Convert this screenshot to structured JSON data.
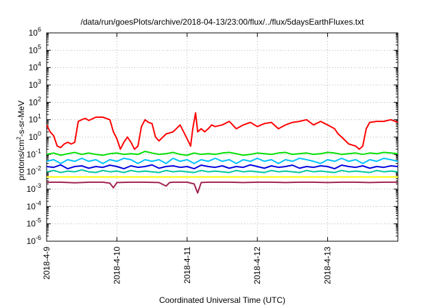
{
  "chart_data": {
    "type": "line",
    "title": "/data/run/goesPlots/archive/2018-04-13/23:00/flux/../flux/5daysEarthFluxes.txt",
    "xlabel": "Coordinated Universal Time (UTC)",
    "ylabel": {
      "base": "protons/cm",
      "sup": "2",
      "rest": "-s-sr-MeV"
    },
    "yscale": "log",
    "ylim": [
      1e-06,
      1000000.0
    ],
    "xlim": [
      0,
      5
    ],
    "grid": true,
    "legend": "none",
    "x_ticks": [
      {
        "value": 0,
        "label": "2018-4-9"
      },
      {
        "value": 1,
        "label": "2018-4-10"
      },
      {
        "value": 2,
        "label": "2018-4-11"
      },
      {
        "value": 3,
        "label": "2018-4-12"
      },
      {
        "value": 4,
        "label": "2018-4-13"
      }
    ],
    "y_ticks": [
      {
        "exp": 6,
        "label": "6"
      },
      {
        "exp": 5,
        "label": "5"
      },
      {
        "exp": 4,
        "label": "4"
      },
      {
        "exp": 3,
        "label": "3"
      },
      {
        "exp": 2,
        "label": "2"
      },
      {
        "exp": 1,
        "label": "1"
      },
      {
        "exp": 0,
        "label": "0"
      },
      {
        "exp": -1,
        "label": "-1"
      },
      {
        "exp": -2,
        "label": "-2"
      },
      {
        "exp": -3,
        "label": "-3"
      },
      {
        "exp": -4,
        "label": "-4"
      },
      {
        "exp": -5,
        "label": "-5"
      },
      {
        "exp": -6,
        "label": "-6"
      }
    ],
    "y_tick_base": "10",
    "series": [
      {
        "color": "#ff0000",
        "x": [
          0,
          0.05,
          0.1,
          0.15,
          0.2,
          0.25,
          0.3,
          0.35,
          0.4,
          0.45,
          0.5,
          0.55,
          0.6,
          0.7,
          0.8,
          0.9,
          0.95,
          1.0,
          1.05,
          1.1,
          1.15,
          1.2,
          1.25,
          1.3,
          1.35,
          1.4,
          1.45,
          1.5,
          1.55,
          1.6,
          1.7,
          1.8,
          1.9,
          1.95,
          2.0,
          2.05,
          2.08,
          2.12,
          2.15,
          2.2,
          2.25,
          2.3,
          2.35,
          2.4,
          2.5,
          2.6,
          2.7,
          2.8,
          2.9,
          3.0,
          3.1,
          3.2,
          3.3,
          3.4,
          3.5,
          3.6,
          3.7,
          3.8,
          3.9,
          4.0,
          4.1,
          4.15,
          4.2,
          4.3,
          4.4,
          4.45,
          4.5,
          4.55,
          4.6,
          4.7,
          4.8,
          4.9,
          5.0
        ],
        "y": [
          5,
          2,
          1.2,
          0.3,
          0.25,
          0.4,
          0.5,
          0.4,
          0.5,
          8,
          10,
          12,
          9,
          14,
          14,
          10,
          2,
          0.8,
          0.2,
          0.5,
          1,
          0.5,
          0.2,
          0.3,
          4,
          10,
          7,
          6,
          1,
          0.6,
          1.5,
          2,
          5,
          2,
          0.8,
          0.3,
          3,
          25,
          2,
          3,
          2,
          3,
          5,
          4,
          5,
          8,
          3,
          5,
          7,
          4,
          6,
          7,
          3,
          5,
          7,
          8,
          10,
          5,
          8,
          5,
          3,
          1.5,
          1,
          0.4,
          0.3,
          0.2,
          0.3,
          3,
          7,
          8,
          8,
          10,
          7
        ]
      },
      {
        "color": "#00e000",
        "x": [
          0,
          0.1,
          0.2,
          0.3,
          0.4,
          0.5,
          0.6,
          0.7,
          0.8,
          0.9,
          1.0,
          1.1,
          1.2,
          1.3,
          1.4,
          1.5,
          1.6,
          1.7,
          1.8,
          1.9,
          2.0,
          2.1,
          2.2,
          2.3,
          2.4,
          2.5,
          2.6,
          2.7,
          2.8,
          2.9,
          3.0,
          3.1,
          3.2,
          3.3,
          3.4,
          3.5,
          3.6,
          3.7,
          3.8,
          3.9,
          4.0,
          4.1,
          4.2,
          4.3,
          4.4,
          4.5,
          4.6,
          4.7,
          4.8,
          4.9,
          5.0
        ],
        "y": [
          0.1,
          0.12,
          0.09,
          0.11,
          0.13,
          0.1,
          0.12,
          0.1,
          0.09,
          0.11,
          0.12,
          0.1,
          0.11,
          0.1,
          0.15,
          0.12,
          0.1,
          0.11,
          0.13,
          0.1,
          0.09,
          0.12,
          0.1,
          0.11,
          0.1,
          0.12,
          0.13,
          0.11,
          0.09,
          0.1,
          0.12,
          0.11,
          0.1,
          0.12,
          0.13,
          0.1,
          0.11,
          0.12,
          0.1,
          0.11,
          0.13,
          0.12,
          0.1,
          0.11,
          0.12,
          0.1,
          0.12,
          0.11,
          0.13,
          0.12,
          0.11
        ]
      },
      {
        "color": "#00c0ff",
        "x": [
          0,
          0.1,
          0.2,
          0.3,
          0.4,
          0.5,
          0.6,
          0.7,
          0.8,
          0.9,
          1.0,
          1.1,
          1.2,
          1.3,
          1.4,
          1.5,
          1.6,
          1.7,
          1.8,
          1.9,
          2.0,
          2.1,
          2.2,
          2.3,
          2.4,
          2.5,
          2.6,
          2.7,
          2.8,
          2.9,
          3.0,
          3.1,
          3.2,
          3.3,
          3.4,
          3.5,
          3.6,
          3.7,
          3.8,
          3.9,
          4.0,
          4.1,
          4.2,
          4.3,
          4.4,
          4.5,
          4.6,
          4.7,
          4.8,
          4.9,
          5.0
        ],
        "y": [
          0.04,
          0.05,
          0.03,
          0.05,
          0.04,
          0.06,
          0.04,
          0.05,
          0.03,
          0.05,
          0.04,
          0.06,
          0.05,
          0.03,
          0.05,
          0.04,
          0.05,
          0.03,
          0.06,
          0.04,
          0.05,
          0.03,
          0.05,
          0.04,
          0.06,
          0.04,
          0.05,
          0.03,
          0.05,
          0.04,
          0.06,
          0.04,
          0.05,
          0.03,
          0.05,
          0.04,
          0.06,
          0.05,
          0.04,
          0.03,
          0.05,
          0.04,
          0.06,
          0.04,
          0.05,
          0.03,
          0.05,
          0.04,
          0.06,
          0.05,
          0.04
        ]
      },
      {
        "color": "#0000e0",
        "x": [
          0,
          0.1,
          0.2,
          0.3,
          0.4,
          0.5,
          0.6,
          0.7,
          0.8,
          0.9,
          1.0,
          1.1,
          1.2,
          1.3,
          1.4,
          1.5,
          1.6,
          1.7,
          1.8,
          1.9,
          2.0,
          2.1,
          2.2,
          2.3,
          2.4,
          2.5,
          2.6,
          2.7,
          2.8,
          2.9,
          3.0,
          3.1,
          3.2,
          3.3,
          3.4,
          3.5,
          3.6,
          3.7,
          3.8,
          3.9,
          4.0,
          4.1,
          4.2,
          4.3,
          4.4,
          4.5,
          4.6,
          4.7,
          4.8,
          4.9,
          5.0
        ],
        "y": [
          0.02,
          0.018,
          0.025,
          0.015,
          0.02,
          0.022,
          0.016,
          0.02,
          0.018,
          0.024,
          0.02,
          0.015,
          0.022,
          0.018,
          0.02,
          0.025,
          0.016,
          0.02,
          0.022,
          0.018,
          0.02,
          0.015,
          0.024,
          0.02,
          0.018,
          0.022,
          0.016,
          0.02,
          0.018,
          0.025,
          0.02,
          0.016,
          0.022,
          0.018,
          0.02,
          0.024,
          0.016,
          0.02,
          0.018,
          0.022,
          0.02,
          0.015,
          0.024,
          0.02,
          0.018,
          0.022,
          0.016,
          0.02,
          0.018,
          0.022,
          0.02
        ]
      },
      {
        "color": "#00c8a0",
        "x": [
          0,
          0.1,
          0.2,
          0.3,
          0.4,
          0.5,
          0.6,
          0.7,
          0.8,
          0.9,
          1.0,
          1.1,
          1.2,
          1.3,
          1.4,
          1.5,
          1.6,
          1.7,
          1.8,
          1.9,
          2.0,
          2.1,
          2.2,
          2.3,
          2.4,
          2.5,
          2.6,
          2.7,
          2.8,
          2.9,
          3.0,
          3.1,
          3.2,
          3.3,
          3.4,
          3.5,
          3.6,
          3.7,
          3.8,
          3.9,
          4.0,
          4.1,
          4.2,
          4.3,
          4.4,
          4.5,
          4.6,
          4.7,
          4.8,
          4.9,
          5.0
        ],
        "y": [
          0.01,
          0.012,
          0.009,
          0.011,
          0.01,
          0.013,
          0.01,
          0.009,
          0.012,
          0.01,
          0.011,
          0.009,
          0.012,
          0.01,
          0.011,
          0.01,
          0.009,
          0.012,
          0.01,
          0.011,
          0.01,
          0.009,
          0.012,
          0.01,
          0.011,
          0.01,
          0.009,
          0.012,
          0.01,
          0.011,
          0.01,
          0.009,
          0.012,
          0.01,
          0.011,
          0.01,
          0.009,
          0.012,
          0.01,
          0.011,
          0.01,
          0.009,
          0.012,
          0.01,
          0.011,
          0.01,
          0.009,
          0.012,
          0.01,
          0.011,
          0.01
        ]
      },
      {
        "color": "#ffff00",
        "x": [
          0,
          0.5,
          1.0,
          1.5,
          2.0,
          2.5,
          3.0,
          3.5,
          4.0,
          4.5,
          5.0
        ],
        "y": [
          0.005,
          0.005,
          0.005,
          0.005,
          0.005,
          0.005,
          0.005,
          0.005,
          0.005,
          0.005,
          0.005
        ]
      },
      {
        "color": "#a02050",
        "x": [
          0,
          0.2,
          0.4,
          0.6,
          0.8,
          0.9,
          0.95,
          1.0,
          1.2,
          1.4,
          1.6,
          1.7,
          1.75,
          1.8,
          2.0,
          2.1,
          2.15,
          2.2,
          2.3,
          2.4,
          2.6,
          2.8,
          3.0,
          3.2,
          3.4,
          3.6,
          3.8,
          4.0,
          4.2,
          4.4,
          4.6,
          4.8,
          5.0
        ],
        "y": [
          0.0025,
          0.0025,
          0.0023,
          0.0025,
          0.0025,
          0.0022,
          0.0012,
          0.0024,
          0.0025,
          0.0025,
          0.0024,
          0.0015,
          0.0024,
          0.0025,
          0.0025,
          0.002,
          0.0006,
          0.0024,
          0.0025,
          0.0025,
          0.0025,
          0.0024,
          0.0025,
          0.0025,
          0.0024,
          0.0025,
          0.0025,
          0.0024,
          0.0025,
          0.0025,
          0.0024,
          0.0025,
          0.0025
        ]
      }
    ]
  }
}
